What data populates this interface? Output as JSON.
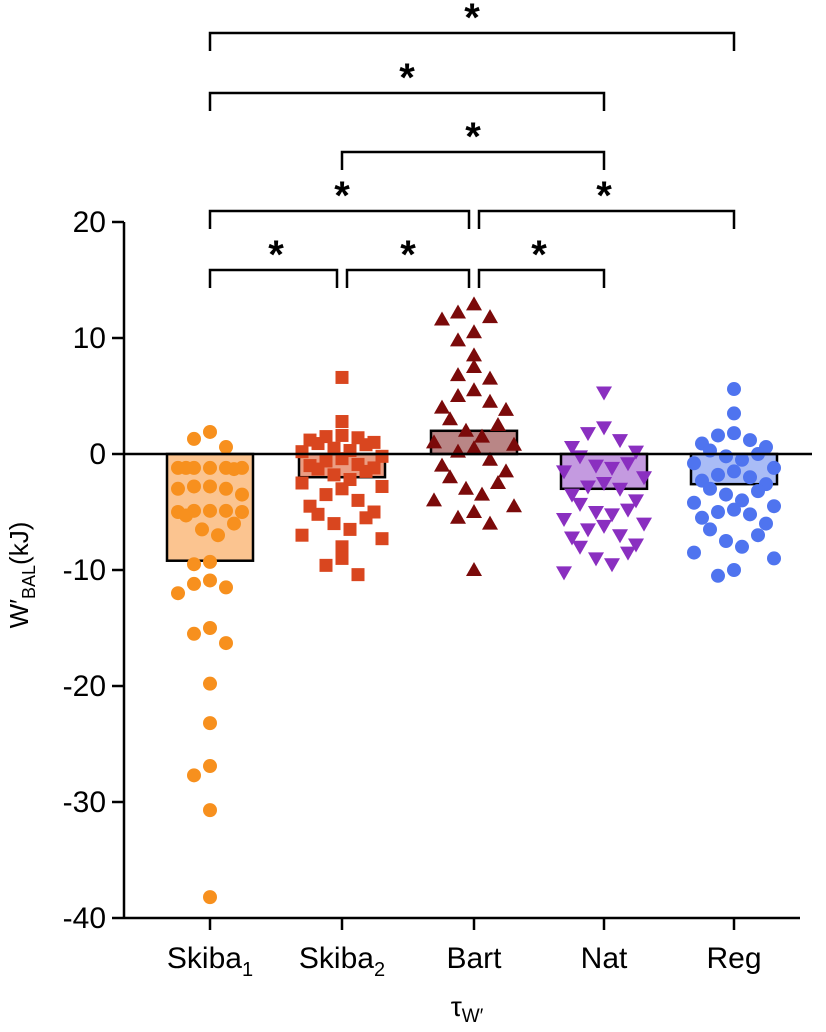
{
  "chart_data": {
    "type": "bar",
    "title": "",
    "ylabel": {
      "main": "W′",
      "sub": "BAL",
      "unit": "(kJ)"
    },
    "xlabel": {
      "main": "τ",
      "sub": "W′"
    },
    "ylim": [
      -40,
      20
    ],
    "yticks": [
      20,
      10,
      0,
      -10,
      -20,
      -30,
      -40
    ],
    "grid": false,
    "categories": [
      {
        "name": "Skiba",
        "sub": "1"
      },
      {
        "name": "Skiba",
        "sub": "2"
      },
      {
        "name": "Bart",
        "sub": ""
      },
      {
        "name": "Nat",
        "sub": ""
      },
      {
        "name": "Reg",
        "sub": ""
      }
    ],
    "series": [
      {
        "name": "Skiba1",
        "mean": -9.2,
        "color": "#f7901e",
        "fill": "#fbc490",
        "marker": "circle",
        "points": [
          1.9,
          1.3,
          0.6,
          -1.2,
          -1.2,
          -1.2,
          -1.2,
          -1.2,
          -1.2,
          -1.3,
          -2.8,
          -2.8,
          -3.0,
          -3.0,
          -3.5,
          -4.9,
          -4.9,
          -4.9,
          -5.0,
          -5.0,
          -5.3,
          -6.0,
          -6.5,
          -7.0,
          -9.3,
          -9.5,
          -10.9,
          -11.2,
          -11.5,
          -12.0,
          -15.0,
          -15.5,
          -16.3,
          -19.8,
          -23.2,
          -26.9,
          -27.7,
          -30.7,
          -38.2
        ]
      },
      {
        "name": "Skiba2",
        "mean": -2.0,
        "color": "#d9461f",
        "fill": "#eb9d83",
        "marker": "square",
        "points": [
          6.6,
          2.8,
          1.6,
          1.5,
          1.4,
          1.2,
          1.0,
          0.9,
          0.8,
          0.5,
          0.3,
          0.2,
          -0.2,
          -0.4,
          -0.6,
          -0.9,
          -1.0,
          -1.2,
          -1.3,
          -1.5,
          -1.8,
          -2.2,
          -2.5,
          -2.8,
          -3.0,
          -3.5,
          -4.0,
          -4.5,
          -5.0,
          -5.2,
          -5.5,
          -6.0,
          -6.5,
          -7.0,
          -7.3,
          -8.0,
          -9.0,
          -9.6,
          -10.4
        ]
      },
      {
        "name": "Bart",
        "mean": 2.0,
        "color": "#7b0a0a",
        "fill": "#b98686",
        "marker": "triangle-up",
        "points": [
          12.9,
          12.2,
          11.8,
          11.6,
          10.5,
          9.8,
          8.5,
          7.5,
          6.8,
          6.5,
          5.5,
          5.0,
          4.5,
          4.0,
          3.8,
          3.0,
          2.5,
          2.0,
          1.5,
          1.0,
          0.8,
          0.5,
          0.2,
          -0.5,
          -1.0,
          -1.5,
          -2.0,
          -2.5,
          -3.0,
          -3.5,
          -4.0,
          -4.5,
          -5.0,
          -5.5,
          -6.0,
          -10.0
        ]
      },
      {
        "name": "Nat",
        "mean": -3.0,
        "color": "#8a2fc0",
        "fill": "#c49ae0",
        "marker": "triangle-down",
        "points": [
          5.3,
          2.3,
          1.8,
          1.2,
          0.6,
          0.2,
          -0.2,
          -0.8,
          -1.0,
          -1.2,
          -1.5,
          -2.0,
          -2.5,
          -2.8,
          -3.0,
          -3.5,
          -4.0,
          -4.3,
          -4.8,
          -5.0,
          -5.2,
          -5.6,
          -6.0,
          -6.2,
          -6.5,
          -7.0,
          -7.2,
          -7.8,
          -8.0,
          -8.5,
          -9.0,
          -9.5,
          -10.2
        ]
      },
      {
        "name": "Reg",
        "mean": -2.6,
        "color": "#4f74ef",
        "fill": "#a9bcf6",
        "marker": "circle",
        "points": [
          5.6,
          3.5,
          1.8,
          1.6,
          1.2,
          0.9,
          0.6,
          0.3,
          0.0,
          -0.2,
          -0.5,
          -0.8,
          -1.2,
          -1.5,
          -1.8,
          -2.0,
          -2.3,
          -2.6,
          -3.0,
          -3.2,
          -3.5,
          -4.0,
          -4.2,
          -4.5,
          -4.8,
          -5.0,
          -5.2,
          -5.5,
          -6.0,
          -6.5,
          -7.0,
          -7.5,
          -8.0,
          -8.5,
          -9.0,
          -10.0,
          -10.5
        ]
      }
    ],
    "significance": [
      {
        "from": 0,
        "to": 4,
        "label": "*"
      },
      {
        "from": 0,
        "to": 3,
        "label": "*"
      },
      {
        "from": 1,
        "to": 3,
        "label": "*"
      },
      {
        "from": 0,
        "to": 2,
        "label": "*"
      },
      {
        "from": 2,
        "to": 4,
        "label": "*"
      },
      {
        "from": 0,
        "to": 1,
        "label": "*"
      },
      {
        "from": 1,
        "to": 2,
        "label": "*"
      },
      {
        "from": 2,
        "to": 3,
        "label": "*"
      }
    ]
  }
}
